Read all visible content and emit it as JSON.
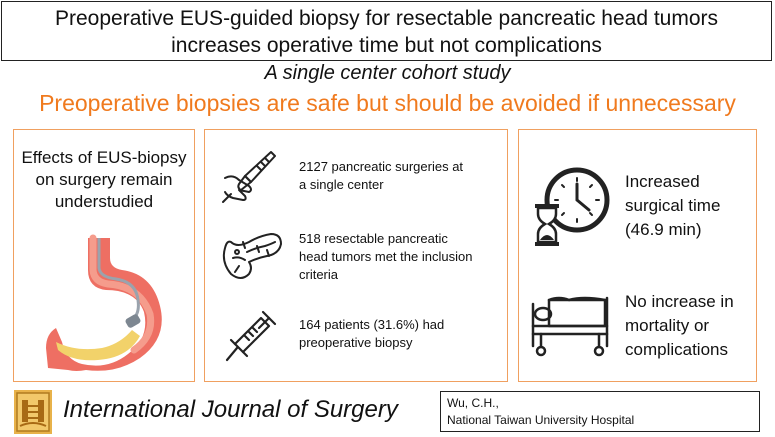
{
  "header": {
    "title_line1": "Preoperative EUS-guided biopsy for resectable pancreatic head tumors",
    "title_line2": "increases operative time but not complications",
    "subtitle": "A single center cohort study",
    "tagline": "Preoperative biopsies are safe but should be avoided if unnecessary"
  },
  "panel_left": {
    "line1": "Effects of EUS-biopsy",
    "line2": "on surgery remain",
    "line3": "understudied",
    "icon": "stomach-endoscope-icon"
  },
  "panel_middle": {
    "items": [
      {
        "line1": "2127 pancreatic surgeries at",
        "line2": "a single center",
        "icon": "scalpel-hand-icon"
      },
      {
        "line1": "518 resectable pancreatic",
        "line2": "head tumors met the inclusion",
        "line3": "criteria",
        "icon": "pancreas-icon"
      },
      {
        "line1": "164 patients (31.6%) had",
        "line2": "preoperative biopsy",
        "icon": "syringe-icon"
      }
    ]
  },
  "panel_right": {
    "item1": {
      "line1": "Increased",
      "line2": "surgical time",
      "line3": "(46.9 min)",
      "icon": "clock-hourglass-icon"
    },
    "item2": {
      "line1": "No increase in",
      "line2": "mortality or",
      "line3": "complications",
      "icon": "hospital-bed-icon"
    }
  },
  "footer": {
    "journal": "International Journal of Surgery",
    "author": "Wu, C.H.,",
    "affiliation": "National Taiwan University Hospital",
    "logo_icon": "journal-logo-icon"
  },
  "colors": {
    "accent": "#f07a1e",
    "panel_border": "#f0a060"
  }
}
